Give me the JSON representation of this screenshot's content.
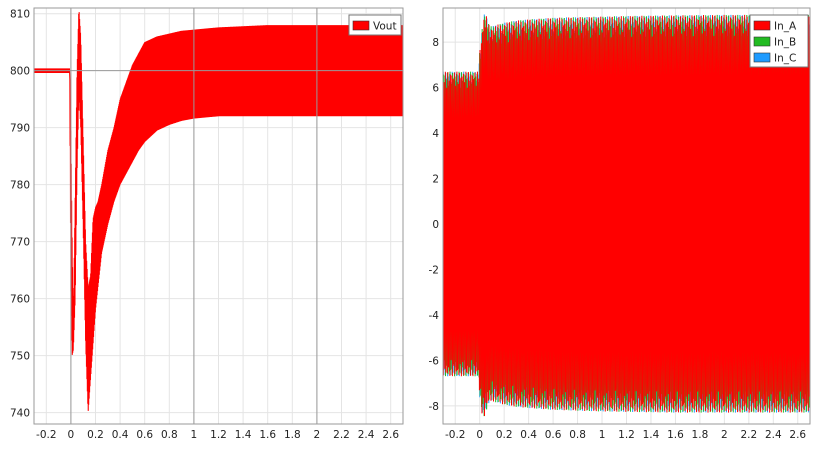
{
  "chart_data": [
    {
      "type": "line",
      "title": "",
      "xlabel": "",
      "ylabel": "",
      "xlim": [
        -0.3,
        2.7
      ],
      "ylim": [
        738,
        811
      ],
      "xticks": [
        -0.2,
        0,
        0.2,
        0.4,
        0.6,
        0.8,
        1,
        1.2,
        1.4,
        1.6,
        1.8,
        2,
        2.2,
        2.4,
        2.6
      ],
      "xtick_labels": [
        "-0.2",
        "0",
        "0.2",
        "0.4",
        "0.6",
        "0.8",
        "1",
        "1.2",
        "1.4",
        "1.6",
        "1.8",
        "2",
        "2.2",
        "2.4",
        "2.6"
      ],
      "yticks": [
        740,
        750,
        760,
        770,
        780,
        790,
        800,
        810
      ],
      "ytick_labels": [
        "740",
        "750",
        "760",
        "770",
        "780",
        "790",
        "800",
        "810"
      ],
      "major_grid": {
        "x": [
          0,
          1,
          2
        ],
        "y": [
          800
        ]
      },
      "grid": true,
      "legend_position": "top-right",
      "series": [
        {
          "name": "Vout",
          "color": "#ff0000",
          "x": [
            -0.3,
            -0.01,
            0.0,
            0.01,
            0.02,
            0.035,
            0.05,
            0.065,
            0.08,
            0.1,
            0.12,
            0.14,
            0.16,
            0.18,
            0.2,
            0.22,
            0.25,
            0.3,
            0.35,
            0.4,
            0.45,
            0.5,
            0.55,
            0.6,
            0.7,
            0.8,
            0.9,
            1.0,
            1.1,
            1.2,
            1.4,
            1.6,
            1.8,
            2.0,
            2.2,
            2.4,
            2.6,
            2.7
          ],
          "upper": [
            800.4,
            800.4,
            788,
            770,
            756,
            778,
            800,
            811,
            806,
            788,
            770,
            762,
            764,
            774,
            776,
            777,
            780,
            786,
            790,
            795,
            798,
            801,
            803,
            805,
            806,
            806.5,
            807,
            807.2,
            807.4,
            807.6,
            807.8,
            808,
            808,
            808,
            808,
            808,
            808,
            808
          ],
          "lower": [
            799.6,
            799.6,
            762,
            750,
            751,
            760,
            782,
            796,
            790,
            772,
            752,
            740,
            746,
            752,
            758,
            762,
            768,
            773,
            777,
            780,
            782,
            784,
            786,
            787.5,
            789.5,
            790.5,
            791.2,
            791.6,
            791.8,
            792,
            792,
            792,
            792,
            792,
            792,
            792,
            792,
            792
          ]
        }
      ]
    },
    {
      "type": "line",
      "title": "",
      "xlabel": "",
      "ylabel": "",
      "xlim": [
        -0.3,
        2.7
      ],
      "ylim": [
        -8.8,
        9.5
      ],
      "xticks": [
        -0.2,
        0,
        0.2,
        0.4,
        0.6,
        0.8,
        1,
        1.2,
        1.4,
        1.6,
        1.8,
        2,
        2.2,
        2.4,
        2.6
      ],
      "xtick_labels": [
        "-0.2",
        "0",
        "0.2",
        "0.4",
        "0.6",
        "0.8",
        "1",
        "1.2",
        "1.4",
        "1.6",
        "1.8",
        "2",
        "2.2",
        "2.4",
        "2.6"
      ],
      "yticks": [
        -8,
        -6,
        -4,
        -2,
        0,
        2,
        4,
        6,
        8
      ],
      "ytick_labels": [
        "-8",
        "-6",
        "-4",
        "-2",
        "0",
        "2",
        "4",
        "6",
        "8"
      ],
      "grid": true,
      "legend_position": "top-right",
      "series": [
        {
          "name": "In_A",
          "color": "#ff0000"
        },
        {
          "name": "In_B",
          "color": "#22bb22"
        },
        {
          "name": "In_C",
          "color": "#1e9bff"
        }
      ],
      "envelope": {
        "x": [
          -0.3,
          -0.01,
          0.0,
          0.02,
          0.04,
          0.06,
          0.08,
          0.1,
          0.2,
          0.3,
          0.4,
          0.6,
          0.8,
          1.0,
          1.2,
          1.6,
          2.0,
          2.4,
          2.7
        ],
        "upper": [
          6.7,
          6.7,
          7.6,
          8.6,
          9.3,
          9.1,
          8.7,
          8.7,
          8.85,
          8.95,
          9.0,
          9.07,
          9.1,
          9.12,
          9.15,
          9.18,
          9.2,
          9.2,
          9.2
        ],
        "lower": [
          -6.7,
          -6.7,
          -7.6,
          -8.4,
          -8.5,
          -8.1,
          -7.8,
          -7.8,
          -7.95,
          -8.05,
          -8.1,
          -8.18,
          -8.22,
          -8.25,
          -8.27,
          -8.3,
          -8.3,
          -8.3,
          -8.3
        ]
      }
    }
  ]
}
